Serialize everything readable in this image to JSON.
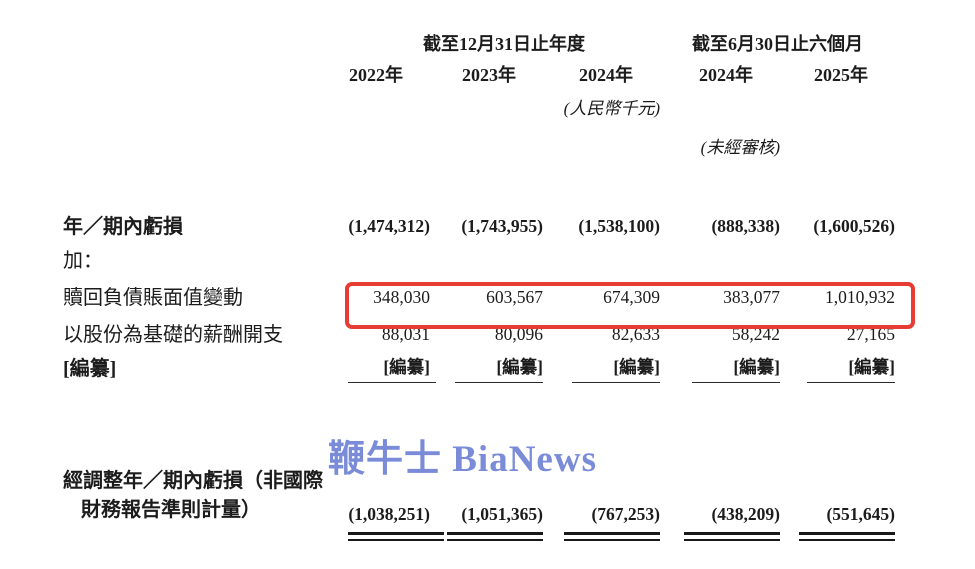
{
  "page": {
    "background_color": "#ffffff",
    "text_color": "#1c1c1c"
  },
  "watermark": {
    "text": "鞭牛士 BiaNews",
    "color": "#7a8bd8"
  },
  "table": {
    "highlight_color": "#e63c34",
    "column_groups": [
      {
        "label": "截至12月31日止年度",
        "span": 3
      },
      {
        "label": "截至6月30日止六個月",
        "span": 2
      }
    ],
    "year_headers": [
      "2022年",
      "2023年",
      "2024年",
      "2024年",
      "2025年"
    ],
    "currency_note": "(人民幣千元)",
    "unaudited_note": "(未經審核)",
    "rows": [
      {
        "label": "年／期內虧損",
        "bold": true,
        "values": [
          "(1,474,312)",
          "(1,743,955)",
          "(1,538,100)",
          "(888,338)",
          "(1,600,526)"
        ]
      },
      {
        "label": "加：",
        "values": [
          "",
          "",
          "",
          "",
          ""
        ]
      },
      {
        "label": "贖回負債賬面值變動",
        "highlighted": true,
        "values": [
          "348,030",
          "603,567",
          "674,309",
          "383,077",
          "1,010,932"
        ]
      },
      {
        "label": "以股份為基礎的薪酬開支",
        "values": [
          "88,031",
          "80,096",
          "82,633",
          "58,242",
          "27,165"
        ]
      },
      {
        "label": "[編纂]",
        "bold": true,
        "underline": true,
        "values": [
          "[編纂]",
          "[編纂]",
          "[編纂]",
          "[編纂]",
          "[編纂]"
        ]
      },
      {
        "label": "經調整年／期內虧損（非國際",
        "label2": "財務報告準則計量）",
        "bold": true,
        "double_underline": true,
        "values": [
          "(1,038,251)",
          "(1,051,365)",
          "(767,253)",
          "(438,209)",
          "(551,645)"
        ]
      }
    ]
  }
}
